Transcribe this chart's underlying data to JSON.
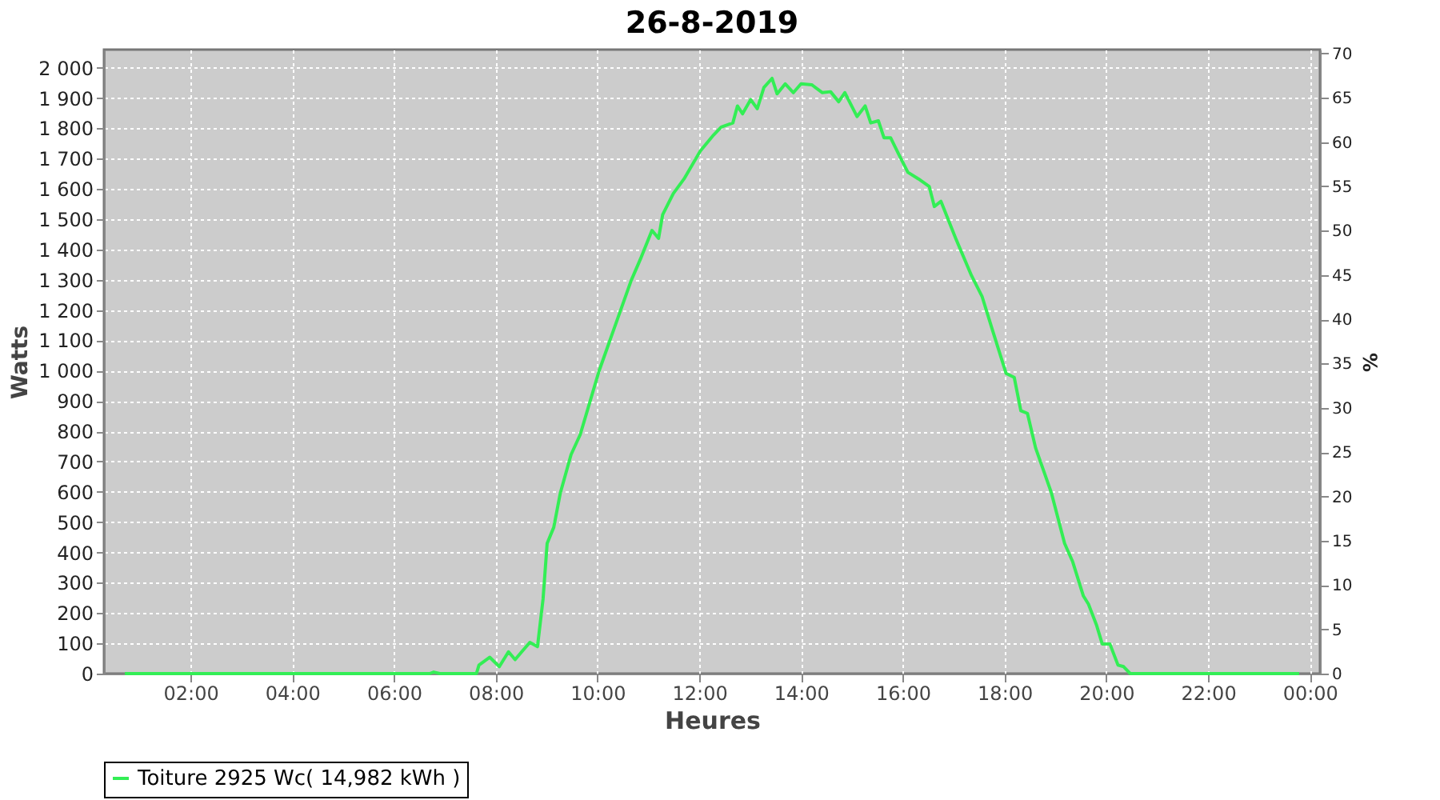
{
  "chart_data": {
    "type": "line",
    "title": "26-8-2019",
    "xlabel": "Heures",
    "ylabel": "Watts",
    "y2label": "%",
    "xlim": [
      0.3,
      24.2
    ],
    "xticks": [
      {
        "value": 2,
        "label": "02:00"
      },
      {
        "value": 4,
        "label": "04:00"
      },
      {
        "value": 6,
        "label": "06:00"
      },
      {
        "value": 8,
        "label": "08:00"
      },
      {
        "value": 10,
        "label": "10:00"
      },
      {
        "value": 12,
        "label": "12:00"
      },
      {
        "value": 14,
        "label": "14:00"
      },
      {
        "value": 16,
        "label": "16:00"
      },
      {
        "value": 18,
        "label": "18:00"
      },
      {
        "value": 20,
        "label": "20:00"
      },
      {
        "value": 22,
        "label": "22:00"
      },
      {
        "value": 24,
        "label": "00:00"
      }
    ],
    "ylim": [
      0,
      2060
    ],
    "yticks": [
      0,
      100,
      200,
      300,
      400,
      500,
      600,
      700,
      800,
      900,
      {
        "value": 1000,
        "label": "1 000"
      },
      {
        "value": 1100,
        "label": "1 100"
      },
      {
        "value": 1200,
        "label": "1 200"
      },
      {
        "value": 1300,
        "label": "1 300"
      },
      {
        "value": 1400,
        "label": "1 400"
      },
      {
        "value": 1500,
        "label": "1 500"
      },
      {
        "value": 1600,
        "label": "1 600"
      },
      {
        "value": 1700,
        "label": "1 700"
      },
      {
        "value": 1800,
        "label": "1 800"
      },
      {
        "value": 1900,
        "label": "1 900"
      },
      {
        "value": 2000,
        "label": "2 000"
      }
    ],
    "y2lim": [
      0,
      70.43
    ],
    "y2ticks": [
      0,
      5,
      10,
      15,
      20,
      25,
      30,
      35,
      40,
      45,
      50,
      55,
      60,
      65,
      70
    ],
    "grid": true,
    "legend": "bottom",
    "marker": "none",
    "line_style": "solid",
    "series": [
      {
        "name": "Toiture 2925 Wc( 14,982 kWh )",
        "color": "#33ee55",
        "x": [
          0.71,
          6.7,
          6.78,
          6.9,
          7.62,
          7.67,
          7.88,
          8.07,
          8.25,
          8.38,
          8.51,
          8.67,
          8.82,
          8.93,
          9.01,
          9.14,
          9.27,
          9.48,
          9.66,
          10.03,
          10.29,
          10.66,
          10.86,
          11.07,
          11.2,
          11.28,
          11.49,
          11.7,
          12.02,
          12.28,
          12.43,
          12.66,
          12.75,
          12.85,
          13.01,
          13.14,
          13.27,
          13.43,
          13.53,
          13.69,
          13.85,
          14.0,
          14.21,
          14.42,
          14.58,
          14.74,
          14.86,
          15.1,
          15.26,
          15.37,
          15.52,
          15.63,
          15.76,
          15.94,
          16.1,
          16.31,
          16.52,
          16.62,
          16.75,
          17.04,
          17.35,
          17.56,
          17.77,
          18.03,
          18.19,
          18.32,
          18.45,
          18.61,
          18.92,
          19.18,
          19.34,
          19.55,
          19.65,
          19.81,
          19.92,
          20.07,
          20.23,
          20.34,
          20.47,
          23.79
        ],
        "values": [
          0,
          0,
          5,
          0,
          0,
          28,
          54,
          23,
          72,
          46,
          72,
          103,
          89,
          247,
          430,
          483,
          597,
          723,
          789,
          999,
          1122,
          1297,
          1375,
          1463,
          1437,
          1515,
          1585,
          1633,
          1725,
          1778,
          1804,
          1818,
          1874,
          1848,
          1895,
          1865,
          1935,
          1965,
          1914,
          1947,
          1918,
          1947,
          1944,
          1918,
          1921,
          1888,
          1918,
          1839,
          1874,
          1818,
          1825,
          1769,
          1769,
          1708,
          1655,
          1633,
          1608,
          1542,
          1559,
          1437,
          1314,
          1244,
          1130,
          991,
          978,
          868,
          859,
          745,
          597,
          430,
          369,
          256,
          229,
          159,
          98,
          98,
          28,
          23,
          0,
          0
        ]
      }
    ]
  }
}
